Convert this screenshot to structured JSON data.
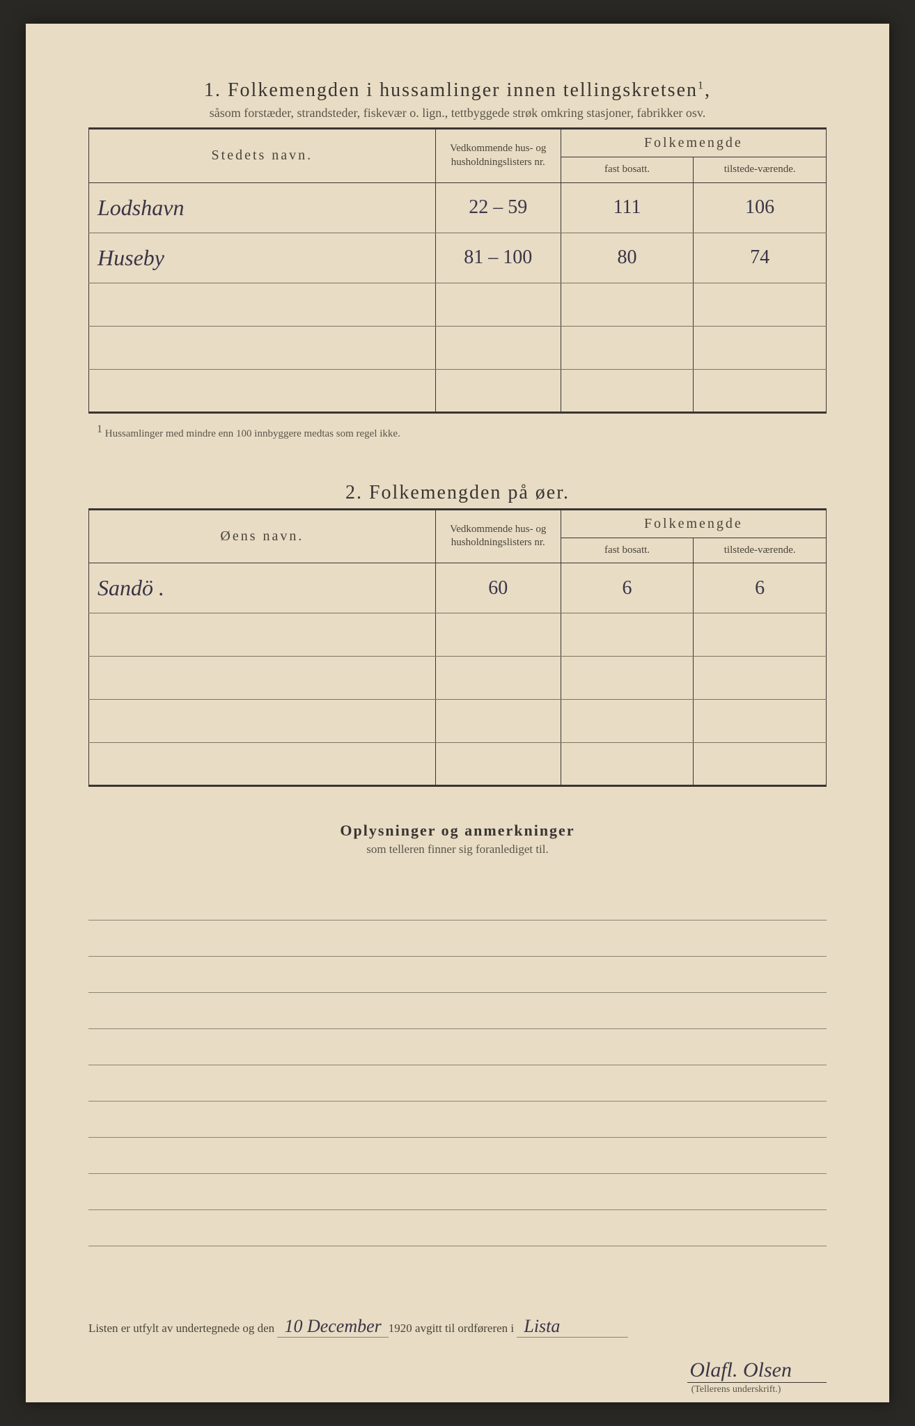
{
  "section1": {
    "number": "1.",
    "title": "Folkemengden i hussamlinger innen tellingskretsen",
    "superscript": "1",
    "subtitle": "såsom forstæder, strandsteder, fiskevær o. lign., tettbyggede strøk omkring stasjoner, fabrikker osv.",
    "headers": {
      "name": "Stedets navn.",
      "nr": "Vedkommende hus- og husholdningslisters nr.",
      "folk": "Folkemengde",
      "fast": "fast bosatt.",
      "tilst": "tilstede-værende."
    },
    "rows": [
      {
        "name": "Lodshavn",
        "nr": "22 – 59",
        "fast": "111",
        "tilst": "106"
      },
      {
        "name": "Huseby",
        "nr": "81 – 100",
        "fast": "80",
        "tilst": "74"
      }
    ],
    "footnote_marker": "1",
    "footnote": "Hussamlinger med mindre enn 100 innbyggere medtas som regel ikke."
  },
  "section2": {
    "number": "2.",
    "title": "Folkemengden på øer.",
    "headers": {
      "name": "Øens navn.",
      "nr": "Vedkommende hus- og husholdningslisters nr.",
      "folk": "Folkemengde",
      "fast": "fast bosatt.",
      "tilst": "tilstede-værende."
    },
    "rows": [
      {
        "name": "Sandö .",
        "nr": "60",
        "fast": "6",
        "tilst": "6"
      }
    ]
  },
  "section3": {
    "title": "Oplysninger og anmerkninger",
    "subtitle": "som telleren finner sig foranlediget til."
  },
  "footer": {
    "prefix": "Listen er utfylt av undertegnede og den",
    "date": "10 December",
    "year": "1920",
    "middle": "avgitt til ordføreren i",
    "place": "Lista",
    "signature": "Olafl. Olsen",
    "signature_label": "(Tellerens underskrift.)"
  },
  "layout": {
    "empty_rows_s1": 3,
    "empty_rows_s2": 4,
    "ruled_lines": 10
  },
  "colors": {
    "page_bg": "#e8dcc5",
    "text": "#3a3530",
    "subtext": "#5a5548",
    "handwriting": "#3a3545",
    "rule": "#8a8570"
  }
}
